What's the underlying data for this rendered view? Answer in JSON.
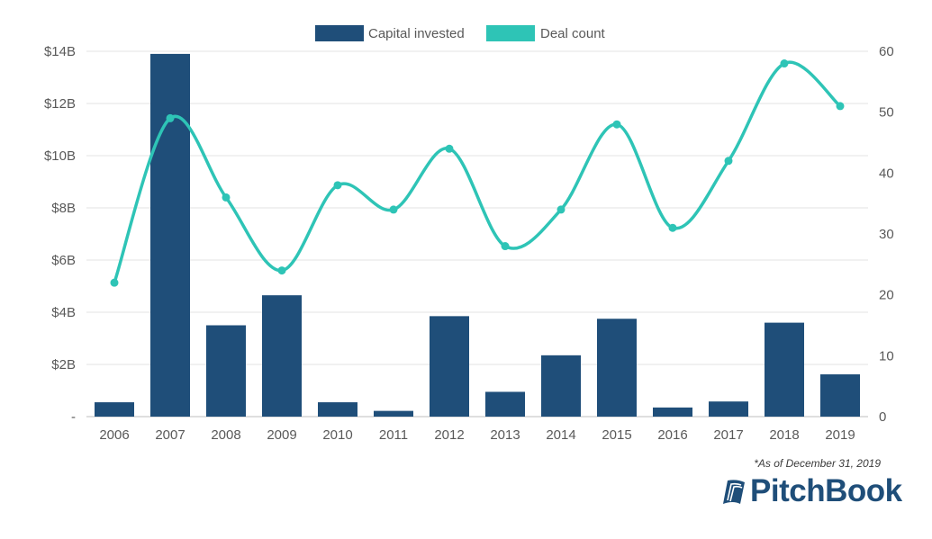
{
  "colors": {
    "bar": "#1f4e79",
    "line": "#2ec4b6",
    "grid": "#e3e3e3",
    "axis": "#595959"
  },
  "legend": [
    {
      "label": "Capital invested",
      "color": "#1f4e79"
    },
    {
      "label": "Deal count",
      "color": "#2ec4b6"
    }
  ],
  "footnote": "*As of December 31, 2019",
  "brand": {
    "name": "PitchBook",
    "icon": "pitchbook-logo-icon"
  },
  "chart_data": {
    "type": "bar",
    "categories": [
      "2006",
      "2007",
      "2008",
      "2009",
      "2010",
      "2011",
      "2012",
      "2013",
      "2014",
      "2015",
      "2016",
      "2017",
      "2018",
      "2019"
    ],
    "series": [
      {
        "name": "Capital invested",
        "type": "bar",
        "axis": "left",
        "values": [
          0.55,
          13.9,
          3.5,
          4.65,
          0.55,
          0.22,
          3.85,
          0.95,
          2.35,
          3.75,
          0.35,
          0.58,
          3.6,
          1.62
        ]
      },
      {
        "name": "Deal count",
        "type": "line",
        "axis": "right",
        "values": [
          22,
          49,
          36,
          24,
          38,
          34,
          44,
          28,
          34,
          48,
          31,
          42,
          58,
          51
        ]
      }
    ],
    "y_left": {
      "ylim": [
        0,
        14
      ],
      "ticks": [
        "-",
        "$2B",
        "$4B",
        "$6B",
        "$8B",
        "$10B",
        "$12B",
        "$14B"
      ]
    },
    "y_right": {
      "ylim": [
        0,
        60
      ],
      "ticks": [
        "0",
        "10",
        "20",
        "30",
        "40",
        "50",
        "60"
      ]
    },
    "grid": true,
    "legend_position": "top-center"
  }
}
